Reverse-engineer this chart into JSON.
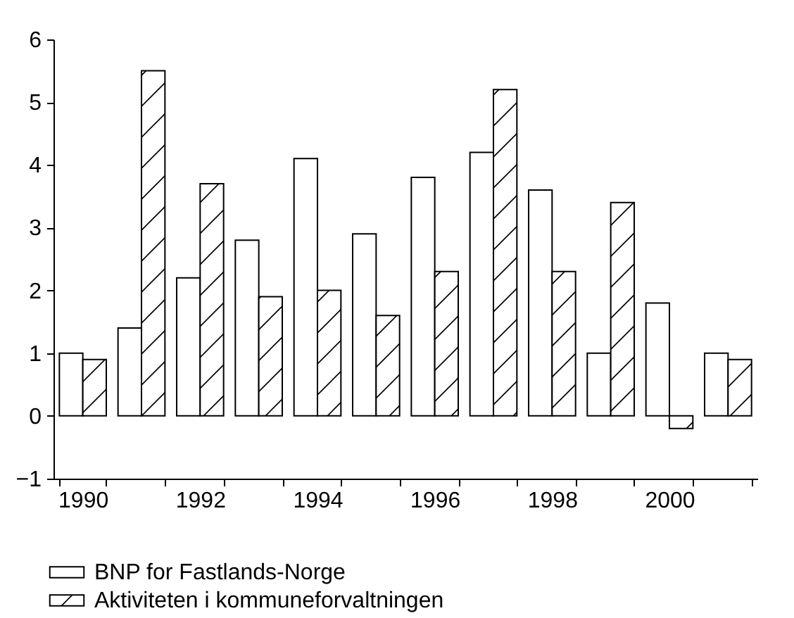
{
  "chart_data": {
    "type": "bar",
    "categories": [
      "1990",
      null,
      "1992",
      null,
      "1994",
      null,
      "1996",
      null,
      "1998",
      null,
      "2000",
      null
    ],
    "series": [
      {
        "name": "BNP for Fastlands-Norge",
        "color": "#ffffff",
        "values": [
          1.0,
          1.4,
          2.2,
          2.8,
          4.1,
          2.9,
          3.8,
          4.2,
          3.6,
          1.0,
          1.8,
          1.0
        ]
      },
      {
        "name": "Aktiviteten i kommuneforvaltningen",
        "color": "#000000",
        "values": [
          0.9,
          5.5,
          3.7,
          1.9,
          2.0,
          1.6,
          2.3,
          5.2,
          2.3,
          3.4,
          -0.2,
          0.9
        ]
      }
    ],
    "ylim": [
      -1,
      6
    ],
    "yticks": [
      -1,
      0,
      1,
      2,
      3,
      4,
      5,
      6
    ],
    "grid": false,
    "legend": "bottom left"
  }
}
